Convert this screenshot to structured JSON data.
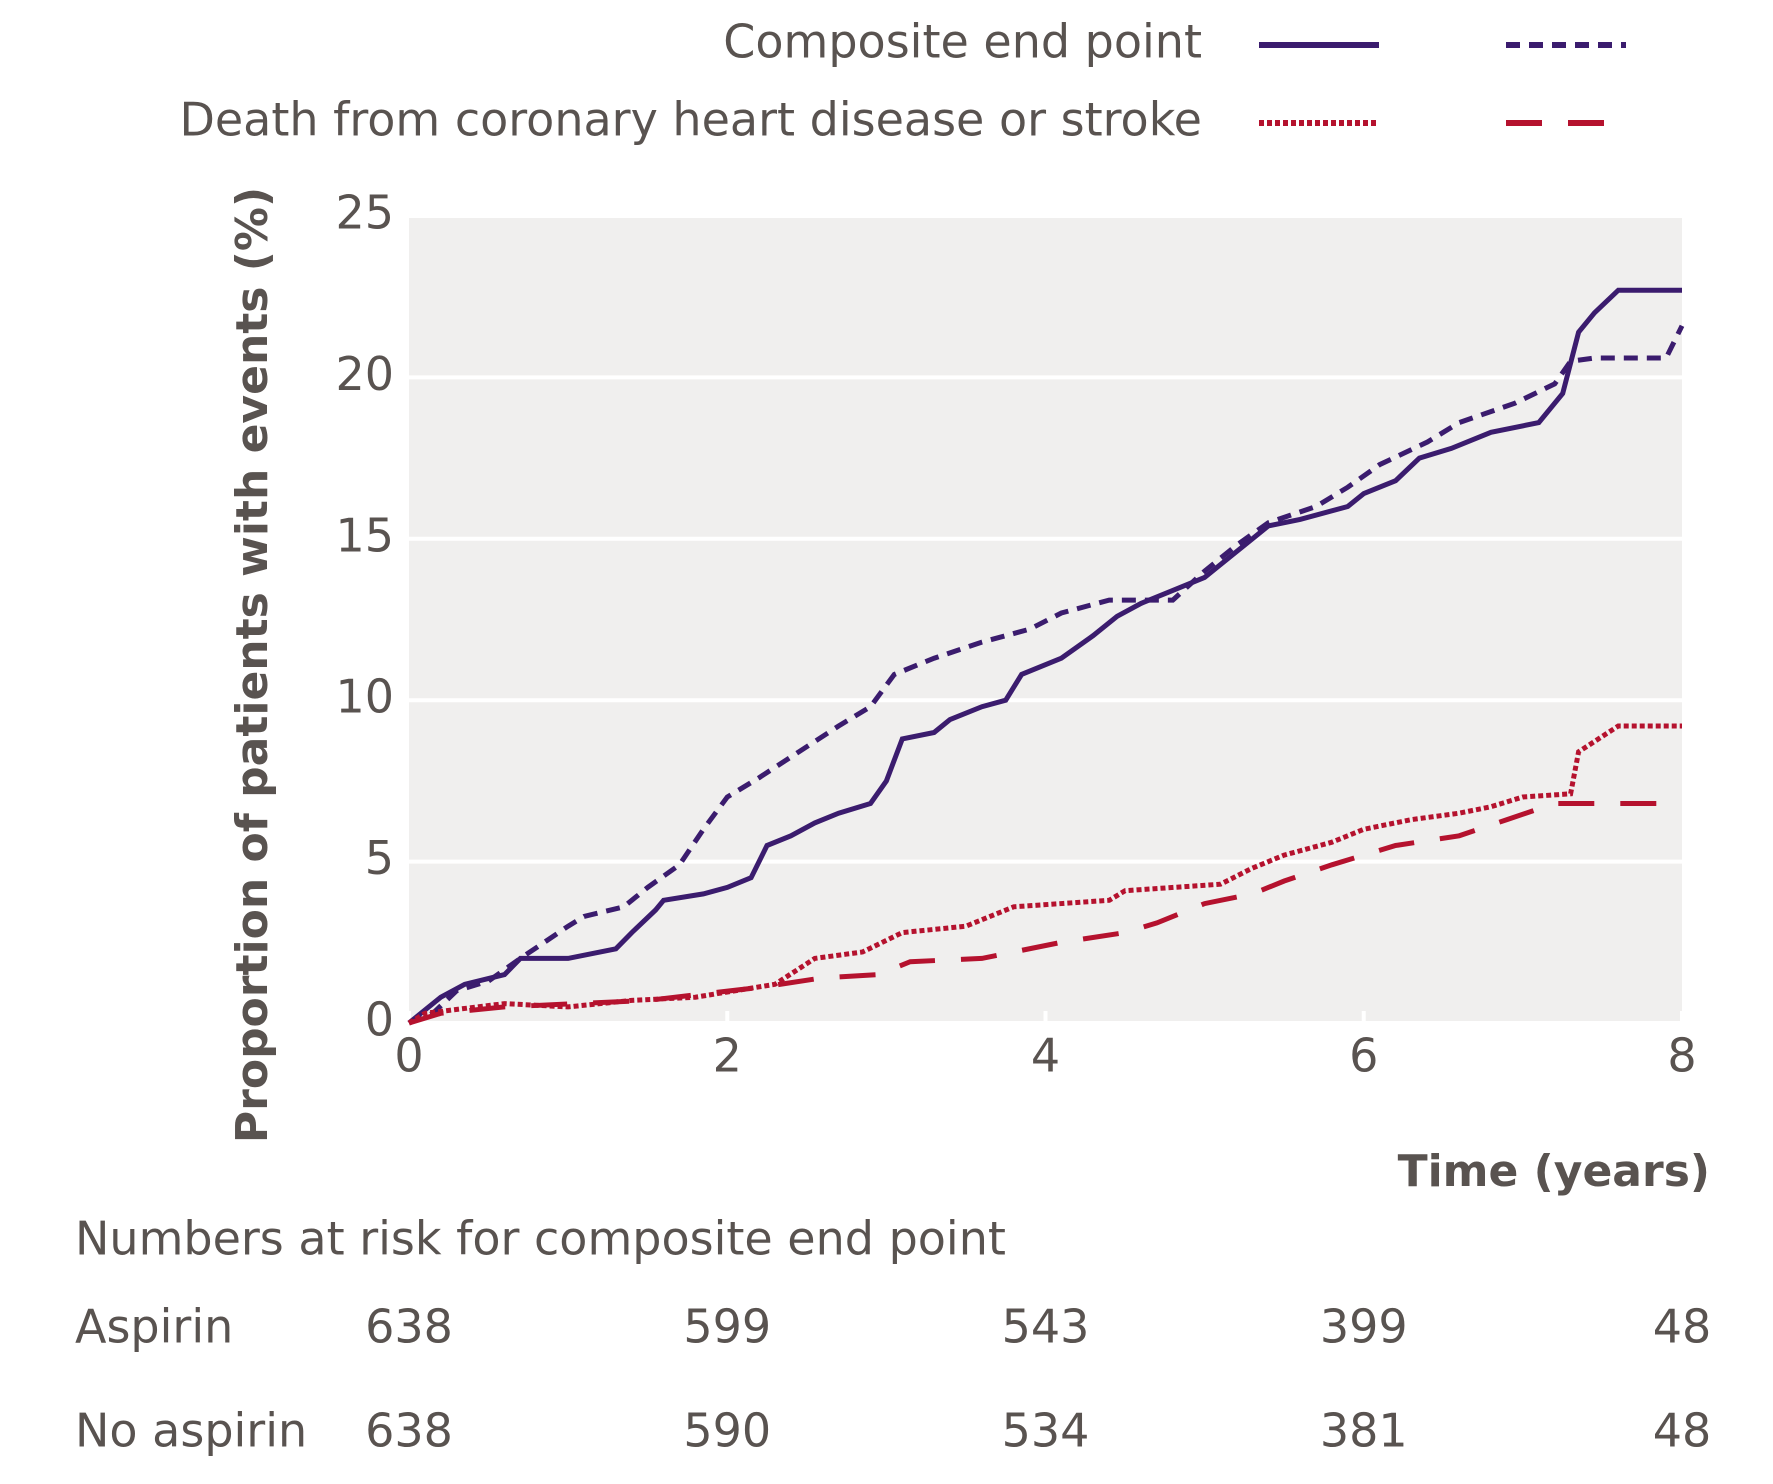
{
  "chart_data": {
    "type": "line",
    "y_label": "Proportion of patients with events (%)",
    "x_label": "Time (years)",
    "legend": [
      "Composite end point",
      "Death from coronary heart disease or stroke"
    ],
    "xlim": [
      0,
      8
    ],
    "xticks": [
      0,
      2,
      4,
      6,
      8
    ],
    "ylim": [
      0,
      25
    ],
    "yticks": [
      0,
      5,
      10,
      15,
      20,
      25
    ],
    "grid": true,
    "series": [
      {
        "color": "#3b1c6e",
        "dash": "solid",
        "x": [
          0,
          0.1,
          0.2,
          0.35,
          0.6,
          0.7,
          1.0,
          1.3,
          1.4,
          1.55,
          1.6,
          1.85,
          2.0,
          2.15,
          2.25,
          2.4,
          2.55,
          2.7,
          2.9,
          3.0,
          3.1,
          3.3,
          3.4,
          3.6,
          3.75,
          3.85,
          4.1,
          4.3,
          4.45,
          4.6,
          4.8,
          5.0,
          5.1,
          5.3,
          5.4,
          5.6,
          5.9,
          6.0,
          6.2,
          6.35,
          6.55,
          6.8,
          7.1,
          7.25,
          7.35,
          7.45,
          7.6,
          8.0
        ],
        "values": [
          0,
          0.4,
          0.8,
          1.2,
          1.5,
          2.0,
          2.0,
          2.3,
          2.8,
          3.5,
          3.8,
          4.0,
          4.2,
          4.5,
          5.5,
          5.8,
          6.2,
          6.5,
          6.8,
          7.5,
          8.8,
          9.0,
          9.4,
          9.8,
          10.0,
          10.8,
          11.3,
          12.0,
          12.6,
          13.0,
          13.4,
          13.8,
          14.2,
          15.0,
          15.4,
          15.6,
          16.0,
          16.4,
          16.8,
          17.5,
          17.8,
          18.3,
          18.6,
          19.5,
          21.4,
          22.0,
          22.7,
          22.7
        ]
      },
      {
        "color": "#3b1c6e",
        "dash": "short",
        "x": [
          0,
          0.15,
          0.3,
          0.5,
          0.7,
          0.85,
          1.0,
          1.1,
          1.35,
          1.5,
          1.7,
          1.85,
          2.0,
          2.2,
          2.45,
          2.7,
          2.9,
          3.05,
          3.3,
          3.6,
          3.9,
          4.1,
          4.4,
          4.8,
          5.0,
          5.2,
          5.4,
          5.7,
          5.9,
          6.1,
          6.4,
          6.6,
          6.95,
          7.2,
          7.3,
          7.45,
          7.9,
          8.0
        ],
        "values": [
          0,
          0.3,
          1.0,
          1.3,
          2.0,
          2.5,
          3.0,
          3.3,
          3.6,
          4.2,
          4.9,
          6.0,
          7.0,
          7.6,
          8.4,
          9.2,
          9.8,
          10.8,
          11.3,
          11.8,
          12.2,
          12.7,
          13.1,
          13.1,
          14.0,
          14.8,
          15.5,
          16.0,
          16.6,
          17.3,
          18.0,
          18.6,
          19.2,
          19.8,
          20.5,
          20.6,
          20.6,
          21.6
        ]
      },
      {
        "color": "#b5122e",
        "dash": "dot",
        "x": [
          0,
          0.1,
          0.6,
          1.0,
          1.4,
          1.8,
          2.3,
          2.55,
          2.85,
          3.1,
          3.5,
          3.8,
          4.4,
          4.5,
          5.1,
          5.3,
          5.5,
          5.8,
          6.0,
          6.3,
          6.6,
          6.8,
          7.0,
          7.3,
          7.35,
          7.6,
          8.0
        ],
        "values": [
          0,
          0.3,
          0.6,
          0.5,
          0.7,
          0.8,
          1.2,
          2.0,
          2.2,
          2.8,
          3.0,
          3.6,
          3.8,
          4.1,
          4.3,
          4.8,
          5.2,
          5.6,
          6.0,
          6.3,
          6.5,
          6.7,
          7.0,
          7.1,
          8.4,
          9.2,
          9.2
        ]
      },
      {
        "color": "#b5122e",
        "dash": "long",
        "x": [
          0,
          0.2,
          0.6,
          1.5,
          2.2,
          2.6,
          2.95,
          3.15,
          3.6,
          4.1,
          4.5,
          4.7,
          5.0,
          5.3,
          5.5,
          5.8,
          6.2,
          6.6,
          6.9,
          7.2,
          8.0
        ],
        "values": [
          0,
          0.3,
          0.5,
          0.7,
          1.1,
          1.4,
          1.5,
          1.9,
          2.0,
          2.5,
          2.8,
          3.1,
          3.7,
          4.0,
          4.4,
          4.9,
          5.5,
          5.8,
          6.3,
          6.8,
          6.8
        ]
      }
    ],
    "risk_table": {
      "title": "Numbers at risk for composite end point",
      "rows": [
        {
          "label": "Aspirin",
          "values": [
            638,
            599,
            543,
            399,
            48
          ]
        },
        {
          "label": "No aspirin",
          "values": [
            638,
            590,
            534,
            381,
            48
          ]
        }
      ]
    }
  }
}
